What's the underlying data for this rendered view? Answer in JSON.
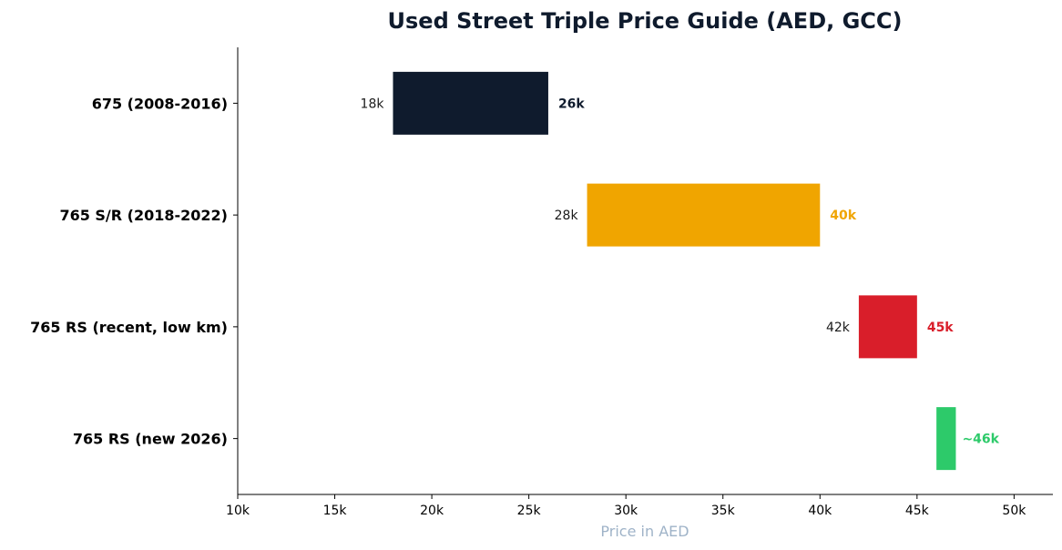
{
  "chart_data": {
    "type": "bar",
    "orientation": "horizontal-range",
    "title": "Used Street Triple Price Guide (AED, GCC)",
    "xlabel": "Price in AED",
    "ylabel": "",
    "xlim": [
      10000,
      52000
    ],
    "x_ticks": [
      10000,
      15000,
      20000,
      25000,
      30000,
      35000,
      40000,
      45000,
      50000
    ],
    "x_tick_labels": [
      "10k",
      "15k",
      "20k",
      "25k",
      "30k",
      "35k",
      "40k",
      "45k",
      "50k"
    ],
    "grid": false,
    "categories": [
      "675 (2008-2016)",
      "765 S/R (2018-2022)",
      "765 RS (recent, low km)",
      "765 RS (new 2026)"
    ],
    "ranges": [
      {
        "low": 18000,
        "high": 26000,
        "low_label": "18k",
        "high_label": "26k",
        "color": "#0f1b2d"
      },
      {
        "low": 28000,
        "high": 40000,
        "low_label": "28k",
        "high_label": "40k",
        "color": "#f0a500"
      },
      {
        "low": 42000,
        "high": 45000,
        "low_label": "42k",
        "high_label": "45k",
        "color": "#d91e2a"
      },
      {
        "low": 46000,
        "high": 47000,
        "low_label": "",
        "high_label": "~46k",
        "color": "#2dca6a"
      }
    ]
  }
}
